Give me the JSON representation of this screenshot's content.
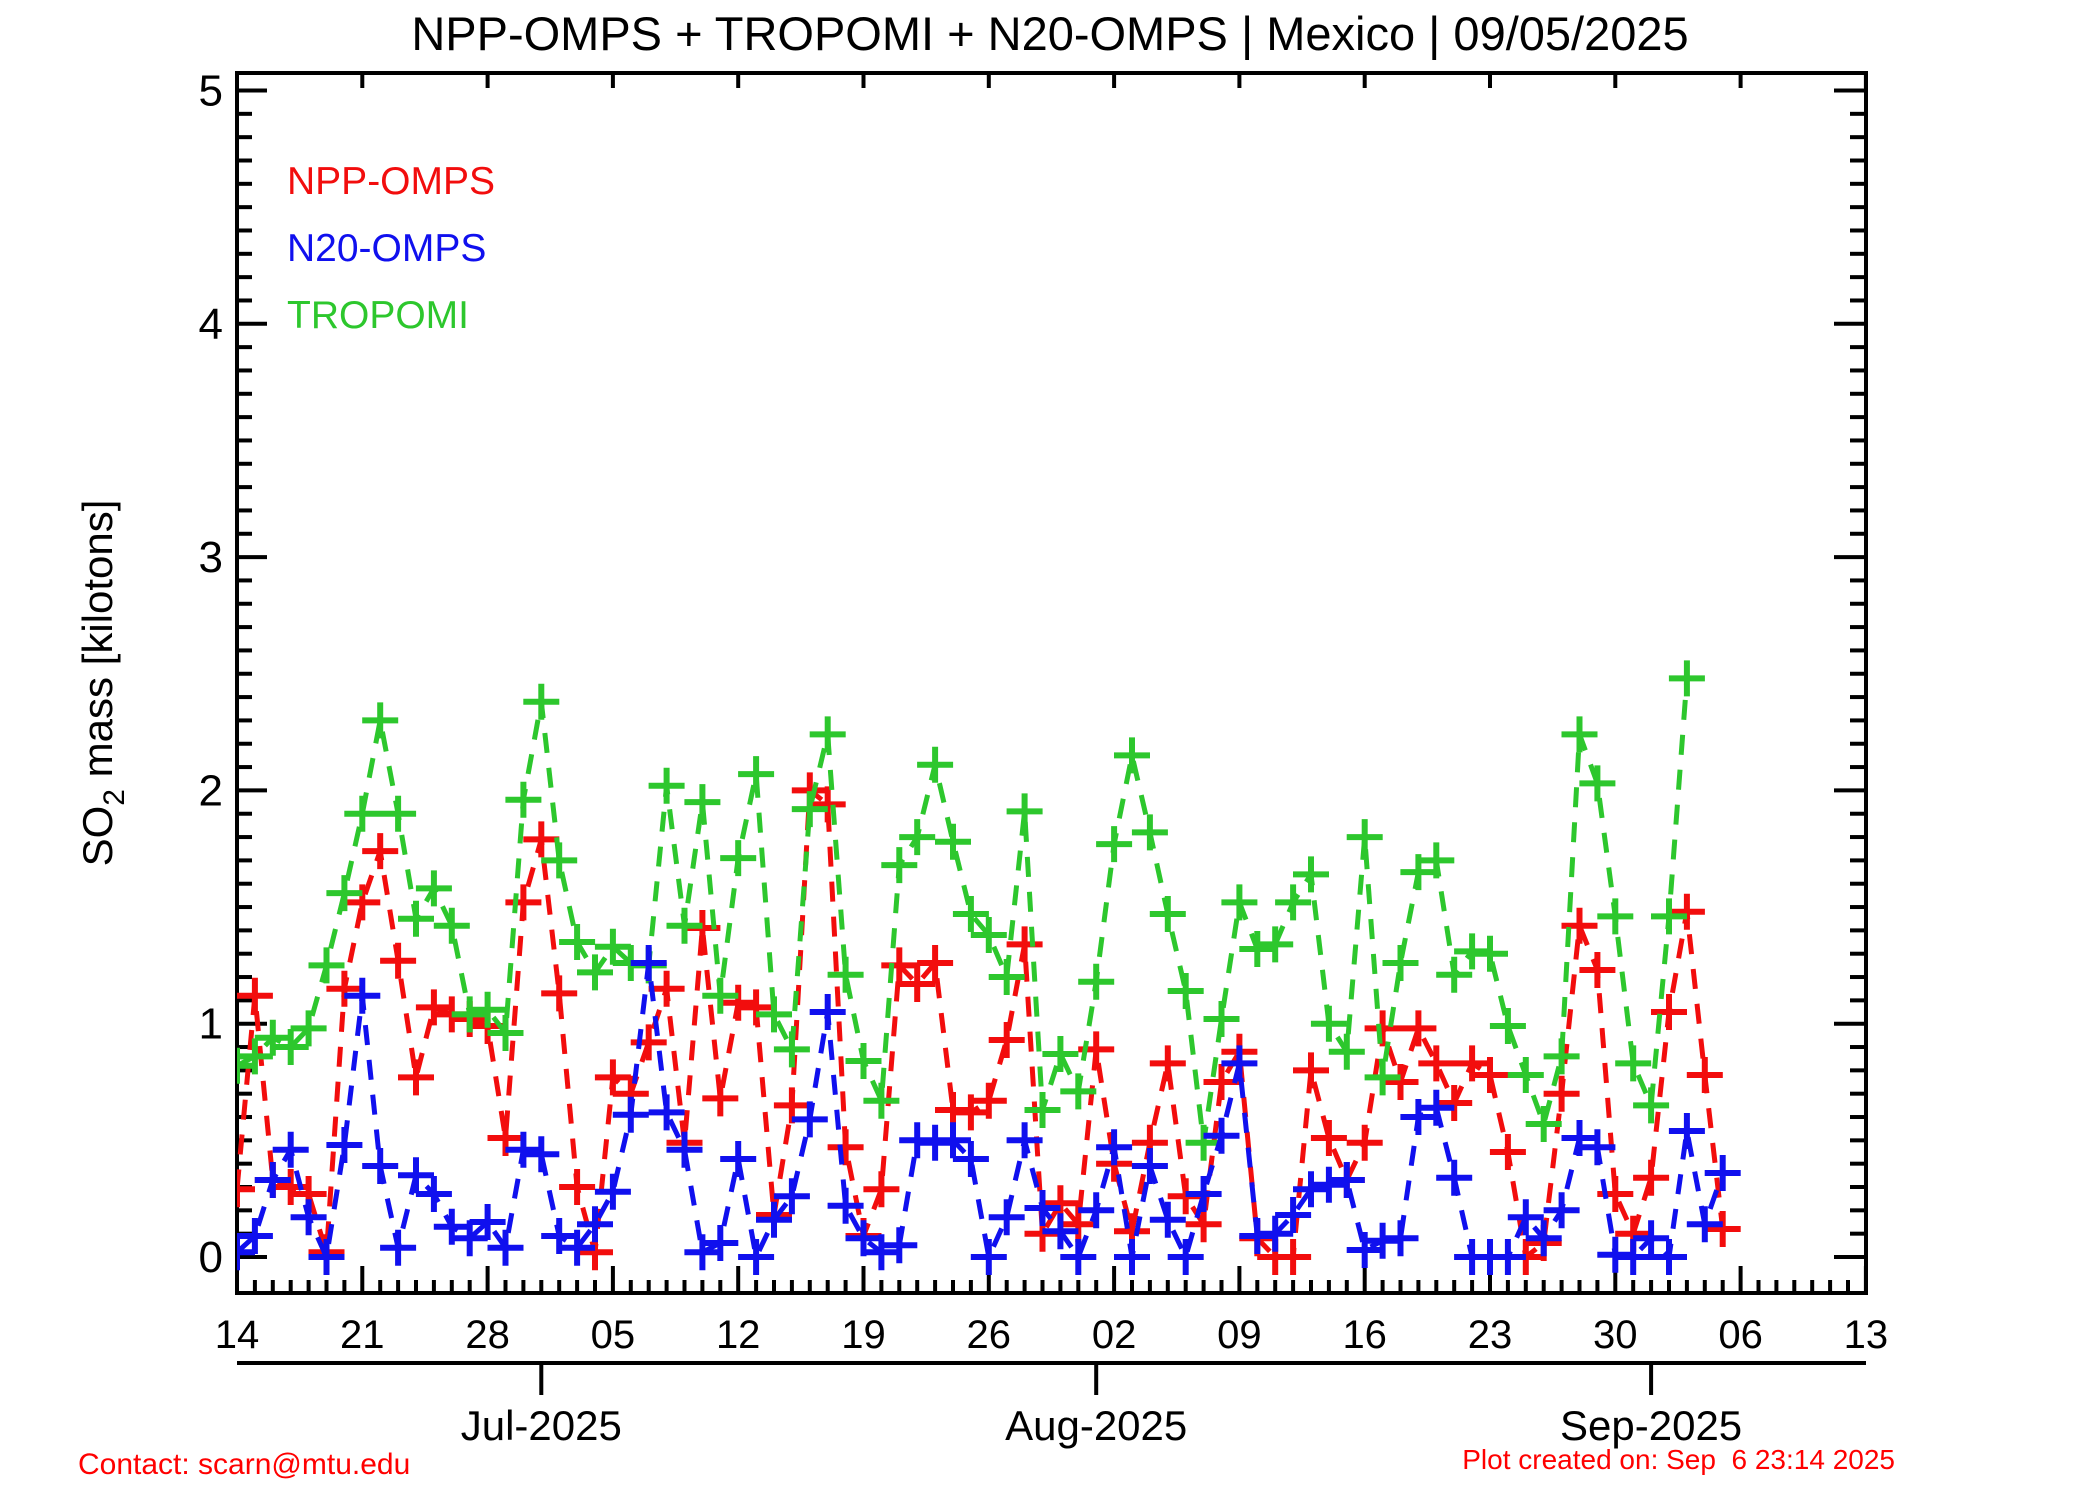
{
  "title": "NPP-OMPS + TROPOMI + N20-OMPS | Mexico | 09/05/2025",
  "footer": {
    "contact": "Contact: scarn@mtu.edu",
    "created": "Plot created on: Sep  6 23:14 2025",
    "text_color": "#ff0000"
  },
  "legend": {
    "position": "upper-left",
    "items": [
      {
        "label": "NPP-OMPS",
        "color": "#f20d0d"
      },
      {
        "label": "N20-OMPS",
        "color": "#1010ee"
      },
      {
        "label": "TROPOMI",
        "color": "#2dc72d"
      }
    ]
  },
  "chart_data": {
    "type": "line",
    "title": "NPP-OMPS + TROPOMI + N20-OMPS | Mexico | 09/05/2025",
    "xlabel": "",
    "ylabel_prefix": "SO",
    "ylabel_sub": "2",
    "ylabel_suffix": " mass [kilotons]",
    "ylim": [
      0,
      5
    ],
    "y_major_ticks": [
      0,
      1,
      2,
      3,
      4,
      5
    ],
    "y_minor_step": 0.1,
    "grid": false,
    "marker": "plus",
    "linestyle": "dashed",
    "x_week_tick_labels": [
      "14",
      "21",
      "28",
      "05",
      "12",
      "19",
      "26",
      "02",
      "09",
      "16",
      "23",
      "30",
      "06",
      "13"
    ],
    "month_ticks": [
      {
        "label": "Jul-2025",
        "day_index": 17
      },
      {
        "label": "Aug-2025",
        "day_index": 48
      },
      {
        "label": "Sep-2025",
        "day_index": 79
      }
    ],
    "dates": [
      "Jun 14",
      "Jun 15",
      "Jun 16",
      "Jun 17",
      "Jun 18",
      "Jun 19",
      "Jun 20",
      "Jun 21",
      "Jun 22",
      "Jun 23",
      "Jun 24",
      "Jun 25",
      "Jun 26",
      "Jun 27",
      "Jun 28",
      "Jun 29",
      "Jun 30",
      "Jul 01",
      "Jul 02",
      "Jul 03",
      "Jul 04",
      "Jul 05",
      "Jul 06",
      "Jul 07",
      "Jul 08",
      "Jul 09",
      "Jul 10",
      "Jul 11",
      "Jul 12",
      "Jul 13",
      "Jul 14",
      "Jul 15",
      "Jul 16",
      "Jul 17",
      "Jul 18",
      "Jul 19",
      "Jul 20",
      "Jul 21",
      "Jul 22",
      "Jul 23",
      "Jul 24",
      "Jul 25",
      "Jul 26",
      "Jul 27",
      "Jul 28",
      "Jul 29",
      "Jul 30",
      "Jul 31",
      "Aug 01",
      "Aug 02",
      "Aug 03",
      "Aug 04",
      "Aug 05",
      "Aug 06",
      "Aug 07",
      "Aug 08",
      "Aug 09",
      "Aug 10",
      "Aug 11",
      "Aug 12",
      "Aug 13",
      "Aug 14",
      "Aug 15",
      "Aug 16",
      "Aug 17",
      "Aug 18",
      "Aug 19",
      "Aug 20",
      "Aug 21",
      "Aug 22",
      "Aug 23",
      "Aug 24",
      "Aug 25",
      "Aug 26",
      "Aug 27",
      "Aug 28",
      "Aug 29",
      "Aug 30",
      "Aug 31",
      "Sep 01",
      "Sep 02",
      "Sep 03",
      "Sep 04",
      "Sep 05"
    ],
    "series": [
      {
        "name": "NPP-OMPS",
        "color": "#f20d0d",
        "values": [
          0.29,
          1.12,
          0.33,
          0.3,
          0.27,
          0.02,
          1.15,
          1.52,
          1.74,
          1.27,
          0.77,
          1.07,
          1.04,
          1.02,
          0.99,
          0.51,
          1.52,
          1.79,
          1.13,
          0.3,
          0.02,
          0.77,
          0.7,
          0.92,
          1.15,
          0.49,
          1.41,
          0.68,
          1.09,
          1.07,
          0.18,
          0.65,
          2.0,
          1.94,
          0.47,
          0.09,
          0.29,
          1.25,
          1.17,
          1.26,
          0.63,
          0.62,
          0.67,
          0.93,
          1.34,
          0.1,
          0.23,
          0.14,
          0.89,
          0.4,
          0.11,
          0.49,
          0.83,
          0.26,
          0.14,
          0.75,
          0.88,
          0.08,
          0.0,
          0.0,
          0.8,
          0.51,
          0.33,
          0.49,
          0.98,
          0.75,
          0.98,
          0.83,
          0.66,
          0.83,
          0.78,
          0.45,
          0.0,
          0.06,
          0.7,
          1.42,
          1.23,
          0.27,
          0.1,
          0.34,
          1.05,
          1.48,
          0.78,
          0.12
        ]
      },
      {
        "name": "TROPOMI",
        "color": "#2dc72d",
        "values": [
          0.82,
          0.86,
          0.94,
          0.9,
          0.98,
          1.25,
          1.56,
          1.9,
          2.3,
          1.9,
          1.45,
          1.58,
          1.42,
          1.04,
          1.06,
          0.96,
          1.96,
          2.38,
          1.7,
          1.35,
          1.22,
          1.33,
          1.26,
          1.25,
          2.02,
          1.42,
          1.95,
          1.12,
          1.71,
          2.07,
          1.04,
          0.89,
          1.92,
          2.24,
          1.21,
          0.84,
          0.67,
          1.68,
          1.8,
          2.11,
          1.78,
          1.47,
          1.38,
          1.2,
          1.91,
          0.63,
          0.87,
          0.71,
          1.18,
          1.77,
          2.15,
          1.82,
          1.47,
          1.14,
          0.49,
          1.02,
          1.52,
          1.32,
          1.34,
          1.52,
          1.64,
          1.0,
          0.88,
          1.8,
          0.77,
          1.26,
          1.65,
          1.7,
          1.21,
          1.31,
          1.3,
          0.99,
          0.78,
          0.57,
          0.86,
          2.24,
          2.03,
          1.46,
          0.83,
          0.65,
          1.46,
          2.48,
          null,
          null
        ]
      },
      {
        "name": "N20-OMPS",
        "color": "#1010ee",
        "values": [
          0.02,
          0.09,
          0.33,
          0.46,
          0.17,
          0.0,
          0.48,
          1.12,
          0.39,
          0.04,
          0.35,
          0.27,
          0.13,
          0.08,
          0.15,
          0.04,
          0.46,
          0.44,
          0.09,
          0.04,
          0.14,
          0.28,
          0.61,
          1.26,
          0.62,
          0.46,
          0.02,
          0.06,
          0.42,
          0.0,
          0.16,
          0.26,
          0.59,
          1.05,
          0.22,
          0.08,
          0.02,
          0.05,
          0.5,
          0.49,
          0.5,
          0.42,
          0.0,
          0.17,
          0.5,
          0.21,
          0.11,
          0.0,
          0.2,
          0.47,
          0.0,
          0.39,
          0.16,
          0.0,
          0.27,
          0.52,
          0.83,
          0.09,
          0.1,
          0.18,
          0.29,
          0.31,
          0.33,
          0.03,
          0.07,
          0.08,
          0.6,
          0.64,
          0.34,
          0.0,
          0.0,
          0.0,
          0.17,
          0.08,
          0.2,
          0.51,
          0.47,
          0.01,
          0.0,
          0.08,
          0.0,
          0.54,
          0.14,
          0.36
        ]
      }
    ]
  }
}
